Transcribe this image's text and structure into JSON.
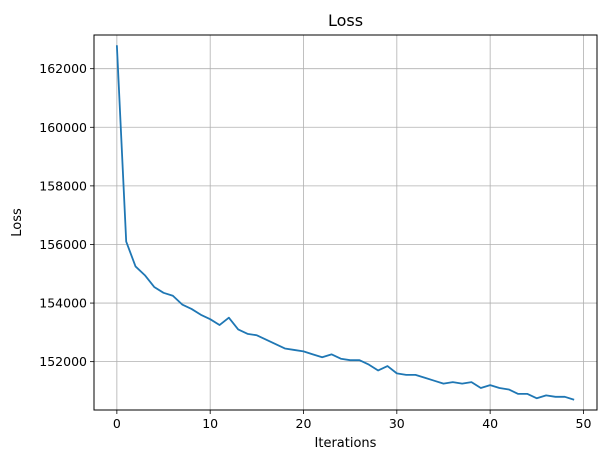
{
  "chart_data": {
    "type": "line",
    "title": "Loss",
    "xlabel": "Iterations",
    "ylabel": "Loss",
    "xlim": [
      -2.45,
      51.45
    ],
    "ylim": [
      150350,
      163150
    ],
    "xticks": [
      0,
      10,
      20,
      30,
      40,
      50
    ],
    "yticks": [
      152000,
      154000,
      156000,
      158000,
      160000,
      162000
    ],
    "grid": true,
    "line_color": "#1f77b4",
    "series": [
      {
        "x": [
          0,
          1,
          2,
          3,
          4,
          5,
          6,
          7,
          8,
          9,
          10,
          11,
          12,
          13,
          14,
          15,
          16,
          17,
          18,
          19,
          20,
          21,
          22,
          23,
          24,
          25,
          26,
          27,
          28,
          29,
          30,
          31,
          32,
          33,
          34,
          35,
          36,
          37,
          38,
          39,
          40,
          41,
          42,
          43,
          44,
          45,
          46,
          47,
          48,
          49
        ],
        "values": [
          162800,
          156100,
          155250,
          154950,
          154550,
          154350,
          154250,
          153950,
          153800,
          153600,
          153450,
          153250,
          153500,
          153100,
          152950,
          152900,
          152750,
          152600,
          152450,
          152400,
          152350,
          152250,
          152150,
          152250,
          152100,
          152050,
          152050,
          151900,
          151700,
          151850,
          151600,
          151550,
          151550,
          151450,
          151350,
          151250,
          151300,
          151250,
          151300,
          151100,
          151200,
          151100,
          151050,
          150900,
          150900,
          150750,
          150850,
          150800,
          150800,
          150700
        ]
      }
    ]
  }
}
